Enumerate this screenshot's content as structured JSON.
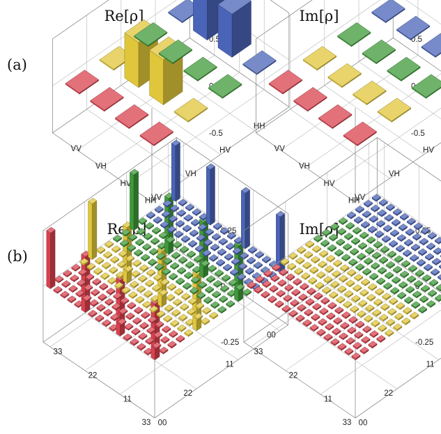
{
  "chart_data": [
    {
      "type": "bar3d",
      "panel_label": "(a)",
      "title": "Re[ρ]",
      "row_labels": [
        "HH",
        "HV",
        "VH",
        "VV"
      ],
      "col_labels": [
        "HH",
        "HV",
        "VH",
        "VV"
      ],
      "zlim": [
        -0.5,
        0.5
      ],
      "z_ticks": [
        "0.5",
        "0",
        "-0.5"
      ],
      "grid": true,
      "row_colors": [
        "#4a64b8",
        "#3f9a3a",
        "#e0c63a",
        "#d9414e"
      ],
      "values": [
        [
          0.0,
          0.46,
          0.46,
          0.0
        ],
        [
          0.0,
          0.0,
          0.0,
          0.0
        ],
        [
          0.0,
          0.48,
          0.48,
          0.0
        ],
        [
          0.0,
          0.0,
          0.0,
          0.0
        ]
      ]
    },
    {
      "type": "bar3d",
      "panel_label": "",
      "title": "Im[ρ]",
      "row_labels": [
        "HH",
        "HV",
        "VH",
        "VV"
      ],
      "col_labels": [
        "HH",
        "HV",
        "VH",
        "VV"
      ],
      "zlim": [
        -0.5,
        0.5
      ],
      "z_ticks": [
        "0.5",
        "0",
        "-0.5"
      ],
      "grid": true,
      "row_colors": [
        "#4a64b8",
        "#3f9a3a",
        "#e0c63a",
        "#d9414e"
      ],
      "values": [
        [
          0.0,
          0.0,
          0.0,
          0.0
        ],
        [
          0.0,
          0.0,
          0.0,
          0.0
        ],
        [
          0.0,
          0.0,
          0.0,
          0.0
        ],
        [
          0.0,
          0.0,
          0.0,
          0.0
        ]
      ]
    },
    {
      "type": "bar3d",
      "panel_label": "(b)",
      "title": "Re[ρ]",
      "row_labels": [
        "00",
        "",
        "",
        "",
        "",
        "11",
        "",
        "",
        "",
        "",
        "22",
        "",
        "",
        "",
        "",
        "33"
      ],
      "col_labels": [
        "00",
        "",
        "",
        "",
        "",
        "11",
        "",
        "",
        "",
        "",
        "22",
        "",
        "",
        "",
        "",
        "33"
      ],
      "zlim": [
        -0.25,
        0.25
      ],
      "z_ticks": [
        "0.25",
        "0",
        "-0.25"
      ],
      "grid": true,
      "row_colors": [
        "#4a64b8",
        "#3f9a3a",
        "#e0c63a",
        "#d9414e"
      ],
      "peak_value": 0.25,
      "peak_positions": [
        [
          0,
          0
        ],
        [
          0,
          5
        ],
        [
          0,
          10
        ],
        [
          0,
          15
        ],
        [
          5,
          0
        ],
        [
          5,
          5
        ],
        [
          5,
          10
        ],
        [
          5,
          15
        ],
        [
          10,
          0
        ],
        [
          10,
          5
        ],
        [
          10,
          10
        ],
        [
          10,
          15
        ],
        [
          15,
          0
        ],
        [
          15,
          5
        ],
        [
          15,
          10
        ],
        [
          15,
          15
        ]
      ]
    },
    {
      "type": "bar3d",
      "panel_label": "",
      "title": "Im[ρ]",
      "row_labels": [
        "00",
        "",
        "",
        "",
        "",
        "11",
        "",
        "",
        "",
        "",
        "22",
        "",
        "",
        "",
        "",
        "33"
      ],
      "col_labels": [
        "00",
        "",
        "",
        "",
        "",
        "11",
        "",
        "",
        "",
        "",
        "22",
        "",
        "",
        "",
        "",
        "33"
      ],
      "zlim": [
        -0.25,
        0.25
      ],
      "z_ticks": [
        "0.25",
        "0",
        "-0.25"
      ],
      "grid": true,
      "row_colors": [
        "#4a64b8",
        "#3f9a3a",
        "#e0c63a",
        "#d9414e"
      ],
      "peak_value": 0.0,
      "peak_positions": []
    }
  ]
}
